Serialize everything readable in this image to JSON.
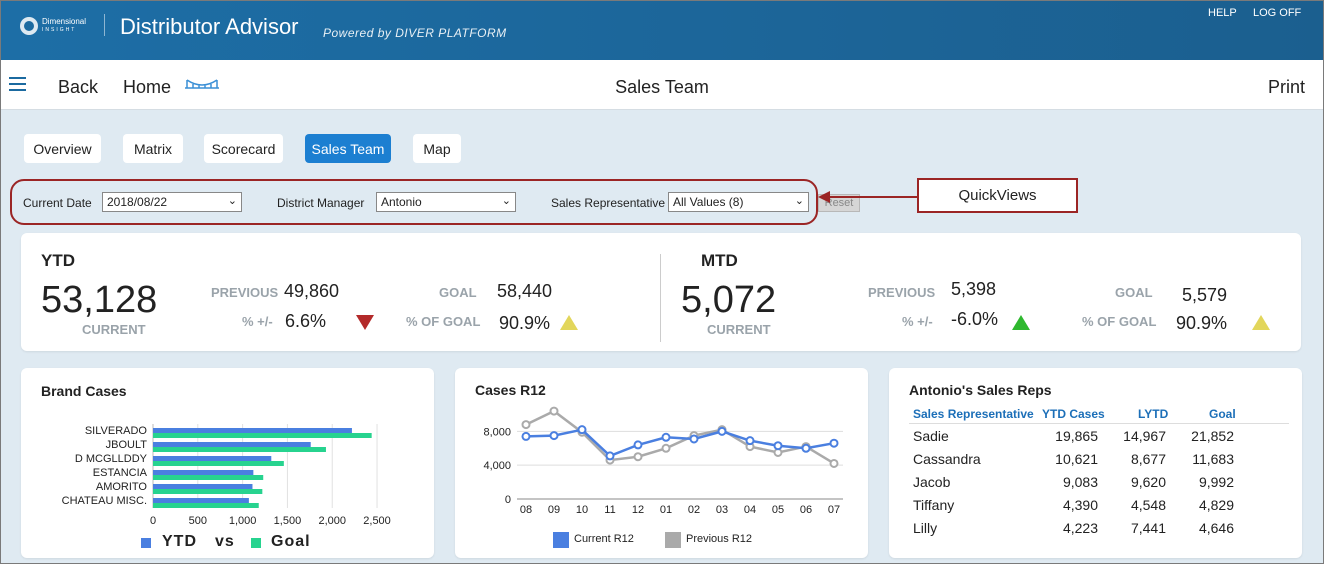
{
  "header": {
    "logo_line1": "Dimensional",
    "logo_line2": "INSIGHT",
    "app_title": "Distributor Advisor",
    "powered_by": "Powered by DIVER PLATFORM",
    "help": "HELP",
    "logoff": "LOG OFF"
  },
  "navbar": {
    "back": "Back",
    "home": "Home",
    "title": "Sales Team",
    "print": "Print"
  },
  "tabs": [
    {
      "label": "Overview"
    },
    {
      "label": "Matrix"
    },
    {
      "label": "Scorecard"
    },
    {
      "label": "Sales Team",
      "active": true
    },
    {
      "label": "Map"
    }
  ],
  "filters": {
    "current_date_label": "Current Date",
    "current_date_value": "2018/08/22",
    "district_manager_label": "District Manager",
    "district_manager_value": "Antonio",
    "sales_rep_label": "Sales Representative",
    "sales_rep_value": "All Values (8)",
    "reset": "Reset",
    "annotation": "QuickViews"
  },
  "ytd": {
    "heading": "YTD",
    "current": "53,128",
    "current_label": "CURRENT",
    "previous_label": "PREVIOUS",
    "previous": "49,860",
    "pct_label": "% +/-",
    "pct": "6.6%",
    "goal_label": "GOAL",
    "goal": "58,440",
    "pct_goal_label": "% OF GOAL",
    "pct_goal": "90.9%"
  },
  "mtd": {
    "heading": "MTD",
    "current": "5,072",
    "current_label": "CURRENT",
    "previous_label": "PREVIOUS",
    "previous": "5,398",
    "pct_label": "% +/-",
    "pct": "-6.0%",
    "goal_label": "GOAL",
    "goal": "5,579",
    "pct_goal_label": "% OF GOAL",
    "pct_goal": "90.9%"
  },
  "colors": {
    "header_bg": "#1b6aa0",
    "accent": "#1c7fd1",
    "ytd_bar": "#4a7fe0",
    "goal_bar": "#27d38f",
    "current_line": "#4a7fe0",
    "previous_line": "#aaaaaa",
    "down_indicator": "#b32a2a",
    "warn_indicator": "#e2d65b",
    "up_indicator": "#2eb82e",
    "annotation_border": "#9b2525"
  },
  "brand_cases": {
    "title": "Brand Cases",
    "legend_ytd": "YTD",
    "legend_vs": "vs",
    "legend_goal": "Goal"
  },
  "cases_r12": {
    "title": "Cases R12",
    "legend_current": "Current R12",
    "legend_previous": "Previous R12"
  },
  "sales_reps": {
    "title": "Antonio's Sales Reps",
    "columns": [
      "Sales Representative",
      "YTD Cases",
      "LYTD",
      "Goal"
    ],
    "rows": [
      [
        "Sadie",
        "19,865",
        "14,967",
        "21,852"
      ],
      [
        "Cassandra",
        "10,621",
        "8,677",
        "11,683"
      ],
      [
        "Jacob",
        "9,083",
        "9,620",
        "9,992"
      ],
      [
        "Tiffany",
        "4,390",
        "4,548",
        "4,829"
      ],
      [
        "Lilly",
        "4,223",
        "7,441",
        "4,646"
      ]
    ]
  },
  "chart_data": [
    {
      "type": "bar",
      "orientation": "horizontal",
      "title": "Brand Cases",
      "categories": [
        "SILVERADO",
        "JBOULT",
        "D MCGLLDDY",
        "ESTANCIA",
        "AMORITO",
        "CHATEAU MISC."
      ],
      "series": [
        {
          "name": "YTD",
          "values": [
            2220,
            1760,
            1320,
            1120,
            1110,
            1070
          ]
        },
        {
          "name": "Goal",
          "values": [
            2440,
            1930,
            1460,
            1230,
            1220,
            1180
          ]
        }
      ],
      "xlim": [
        0,
        2600
      ],
      "xticks": [
        "0",
        "500",
        "1,000",
        "1,500",
        "2,000",
        "2,500"
      ],
      "grid": true,
      "legend": "bottom"
    },
    {
      "type": "line",
      "title": "Cases R12",
      "x": [
        "08",
        "09",
        "10",
        "11",
        "12",
        "01",
        "02",
        "03",
        "04",
        "05",
        "06",
        "07"
      ],
      "series": [
        {
          "name": "Current R12",
          "values": [
            7400,
            7500,
            8200,
            5100,
            6400,
            7300,
            7100,
            8000,
            6900,
            6300,
            6000,
            6600
          ]
        },
        {
          "name": "Previous R12",
          "values": [
            8800,
            10400,
            7900,
            4600,
            5000,
            6000,
            7500,
            8200,
            6200,
            5500,
            6200,
            4200
          ]
        }
      ],
      "ylim": [
        0,
        11000
      ],
      "yticks": [
        "0",
        "4,000",
        "8,000"
      ],
      "grid": true,
      "legend": "bottom"
    }
  ]
}
